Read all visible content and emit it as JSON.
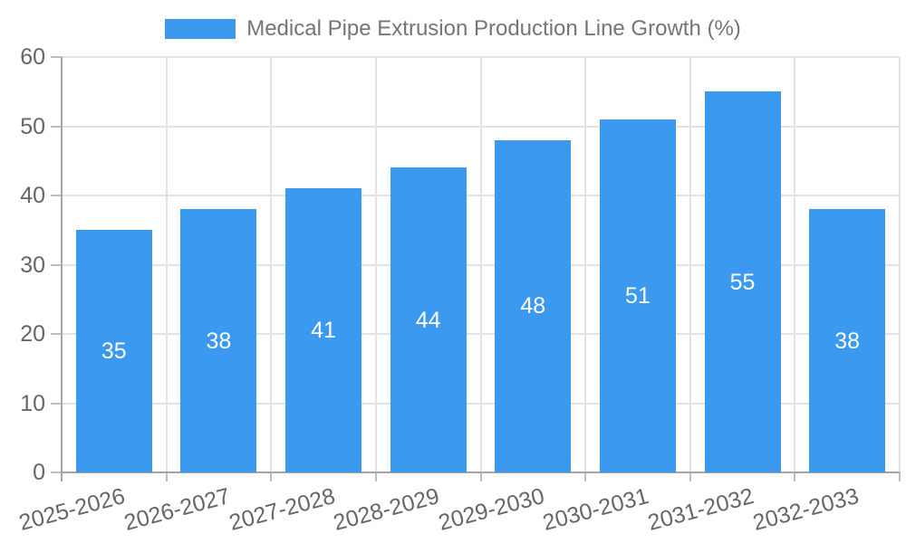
{
  "legend": {
    "label": "Medical Pipe Extrusion Production Line Growth (%)"
  },
  "chart_data": {
    "type": "bar",
    "title": "Medical Pipe Extrusion Production Line Growth (%)",
    "categories": [
      "2025-2026",
      "2026-2027",
      "2027-2028",
      "2028-2029",
      "2029-2030",
      "2030-2031",
      "2031-2032",
      "2032-2033"
    ],
    "values": [
      35,
      38,
      41,
      44,
      48,
      51,
      55,
      38
    ],
    "series": [
      {
        "name": "Medical Pipe Extrusion Production Line Growth (%)",
        "values": [
          35,
          38,
          41,
          44,
          48,
          51,
          55,
          38
        ]
      }
    ],
    "xlabel": "",
    "ylabel": "",
    "ylim": [
      0,
      60
    ],
    "yticks": [
      0,
      10,
      20,
      30,
      40,
      50,
      60
    ],
    "grid": true,
    "legend_position": "top",
    "value_labels": "inside-center",
    "xtick_rotation_deg": -15
  },
  "colors": {
    "bar": "#3b99ef",
    "grid": "#e3e3e3",
    "axis": "#a5a5a5",
    "tick": "#bdbdbd",
    "tick_text": "#666666",
    "legend_text": "#757575",
    "bar_label": "#ffffff",
    "background": "#ffffff"
  }
}
